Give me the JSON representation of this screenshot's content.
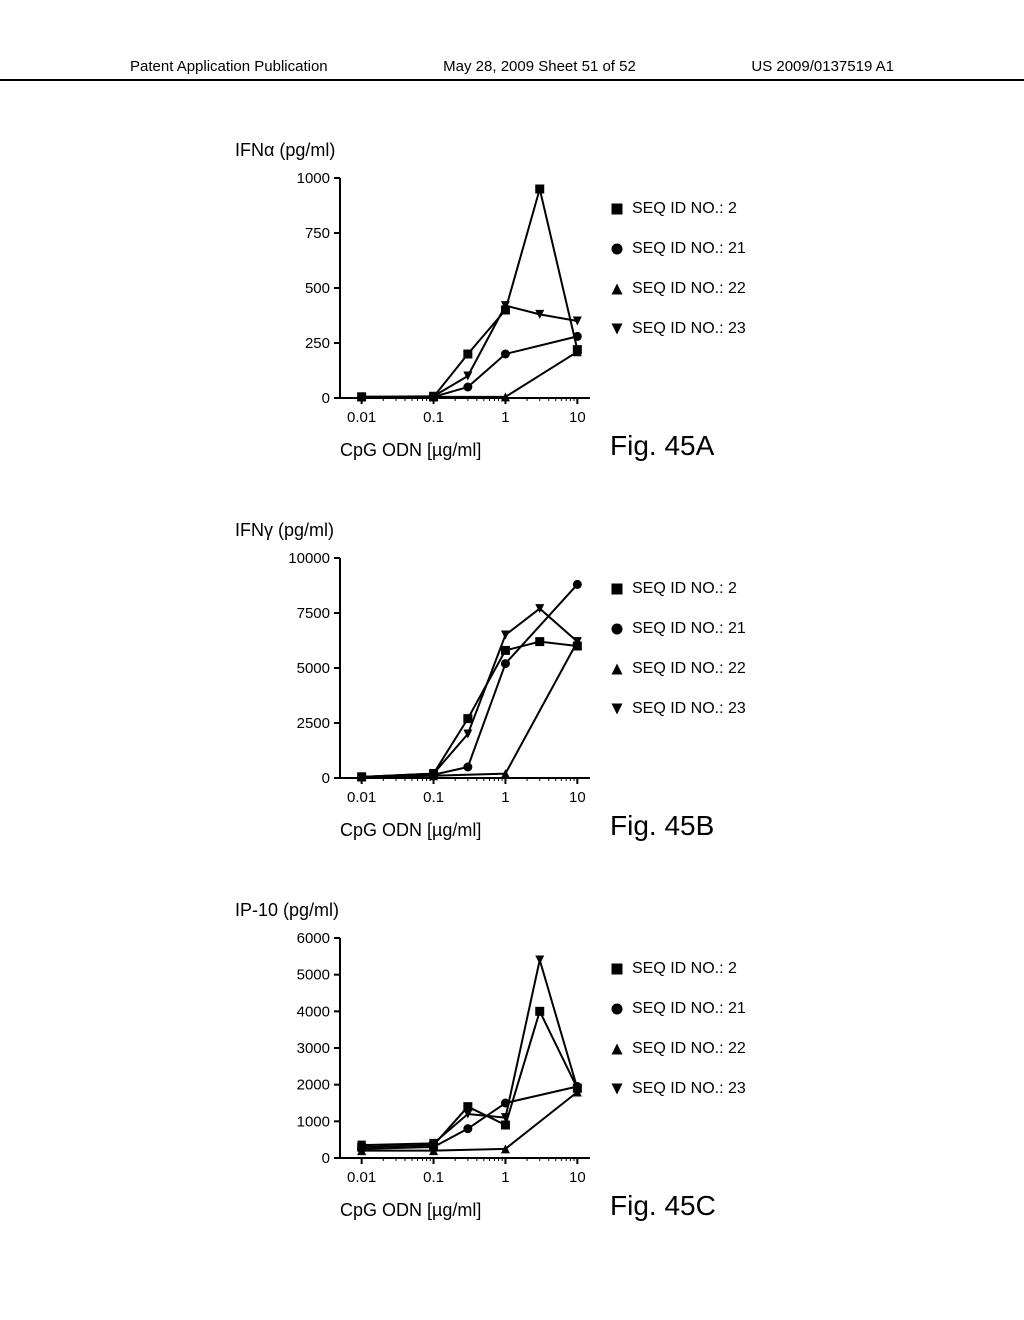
{
  "header": {
    "left": "Patent Application Publication",
    "center": "May 28, 2009  Sheet 51 of 52",
    "right": "US 2009/0137519 A1"
  },
  "legend_items": [
    {
      "marker": "square",
      "label": "SEQ ID NO.: 2"
    },
    {
      "marker": "circle",
      "label": "SEQ ID NO.: 21"
    },
    {
      "marker": "triangle-up",
      "label": "SEQ ID NO.: 22"
    },
    {
      "marker": "triangle-down",
      "label": "SEQ ID NO.: 23"
    }
  ],
  "x_axis": {
    "label": "CpG ODN [µg/ml]",
    "ticks": [
      0.01,
      0.1,
      1,
      10
    ],
    "tick_labels": [
      "0.01",
      "0.1",
      "1",
      "10"
    ],
    "scale": "log",
    "xlim": [
      0.005,
      15
    ]
  },
  "colors": {
    "axis": "#000000",
    "line": "#000000",
    "marker_fill": "#000000",
    "background": "#ffffff"
  },
  "line_width": 2,
  "marker_size": 9,
  "charts": [
    {
      "id": "A",
      "y_title": "IFNα (pg/ml)",
      "fig_label": "Fig. 45A",
      "ylim": [
        0,
        1000
      ],
      "yticks": [
        0,
        250,
        500,
        750,
        1000
      ],
      "series": {
        "seq2": {
          "x": [
            0.01,
            0.1,
            0.3,
            1,
            3,
            10
          ],
          "y": [
            5,
            5,
            200,
            400,
            950,
            220
          ]
        },
        "seq21": {
          "x": [
            0.01,
            0.1,
            0.3,
            1,
            10
          ],
          "y": [
            5,
            5,
            50,
            200,
            280
          ]
        },
        "seq22": {
          "x": [
            0.01,
            0.1,
            1,
            10
          ],
          "y": [
            5,
            5,
            5,
            210
          ]
        },
        "seq23": {
          "x": [
            0.01,
            0.1,
            0.3,
            1,
            3,
            10
          ],
          "y": [
            5,
            8,
            100,
            420,
            380,
            350
          ]
        }
      }
    },
    {
      "id": "B",
      "y_title": "IFNγ (pg/ml)",
      "fig_label": "Fig. 45B",
      "ylim": [
        0,
        10000
      ],
      "yticks": [
        0,
        2500,
        5000,
        7500,
        10000
      ],
      "series": {
        "seq2": {
          "x": [
            0.01,
            0.1,
            0.3,
            1,
            3,
            10
          ],
          "y": [
            50,
            200,
            2700,
            5800,
            6200,
            6000
          ]
        },
        "seq21": {
          "x": [
            0.01,
            0.1,
            0.3,
            1,
            10
          ],
          "y": [
            50,
            150,
            500,
            5200,
            8800
          ]
        },
        "seq22": {
          "x": [
            0.01,
            0.1,
            1,
            10
          ],
          "y": [
            50,
            100,
            200,
            6200
          ]
        },
        "seq23": {
          "x": [
            0.01,
            0.1,
            0.3,
            1,
            3,
            10
          ],
          "y": [
            50,
            200,
            2000,
            6500,
            7700,
            6200
          ]
        }
      }
    },
    {
      "id": "C",
      "y_title": "IP-10 (pg/ml)",
      "fig_label": "Fig. 45C",
      "ylim": [
        0,
        6000
      ],
      "yticks": [
        0,
        1000,
        2000,
        3000,
        4000,
        5000,
        6000
      ],
      "series": {
        "seq2": {
          "x": [
            0.01,
            0.1,
            0.3,
            1,
            3,
            10
          ],
          "y": [
            300,
            350,
            1400,
            900,
            4000,
            1900
          ]
        },
        "seq21": {
          "x": [
            0.01,
            0.1,
            0.3,
            1,
            10
          ],
          "y": [
            250,
            300,
            800,
            1500,
            1950
          ]
        },
        "seq22": {
          "x": [
            0.01,
            0.1,
            1,
            10
          ],
          "y": [
            200,
            200,
            250,
            1800
          ]
        },
        "seq23": {
          "x": [
            0.01,
            0.1,
            0.3,
            1,
            3,
            10
          ],
          "y": [
            350,
            400,
            1200,
            1100,
            5400,
            1900
          ]
        }
      }
    }
  ]
}
